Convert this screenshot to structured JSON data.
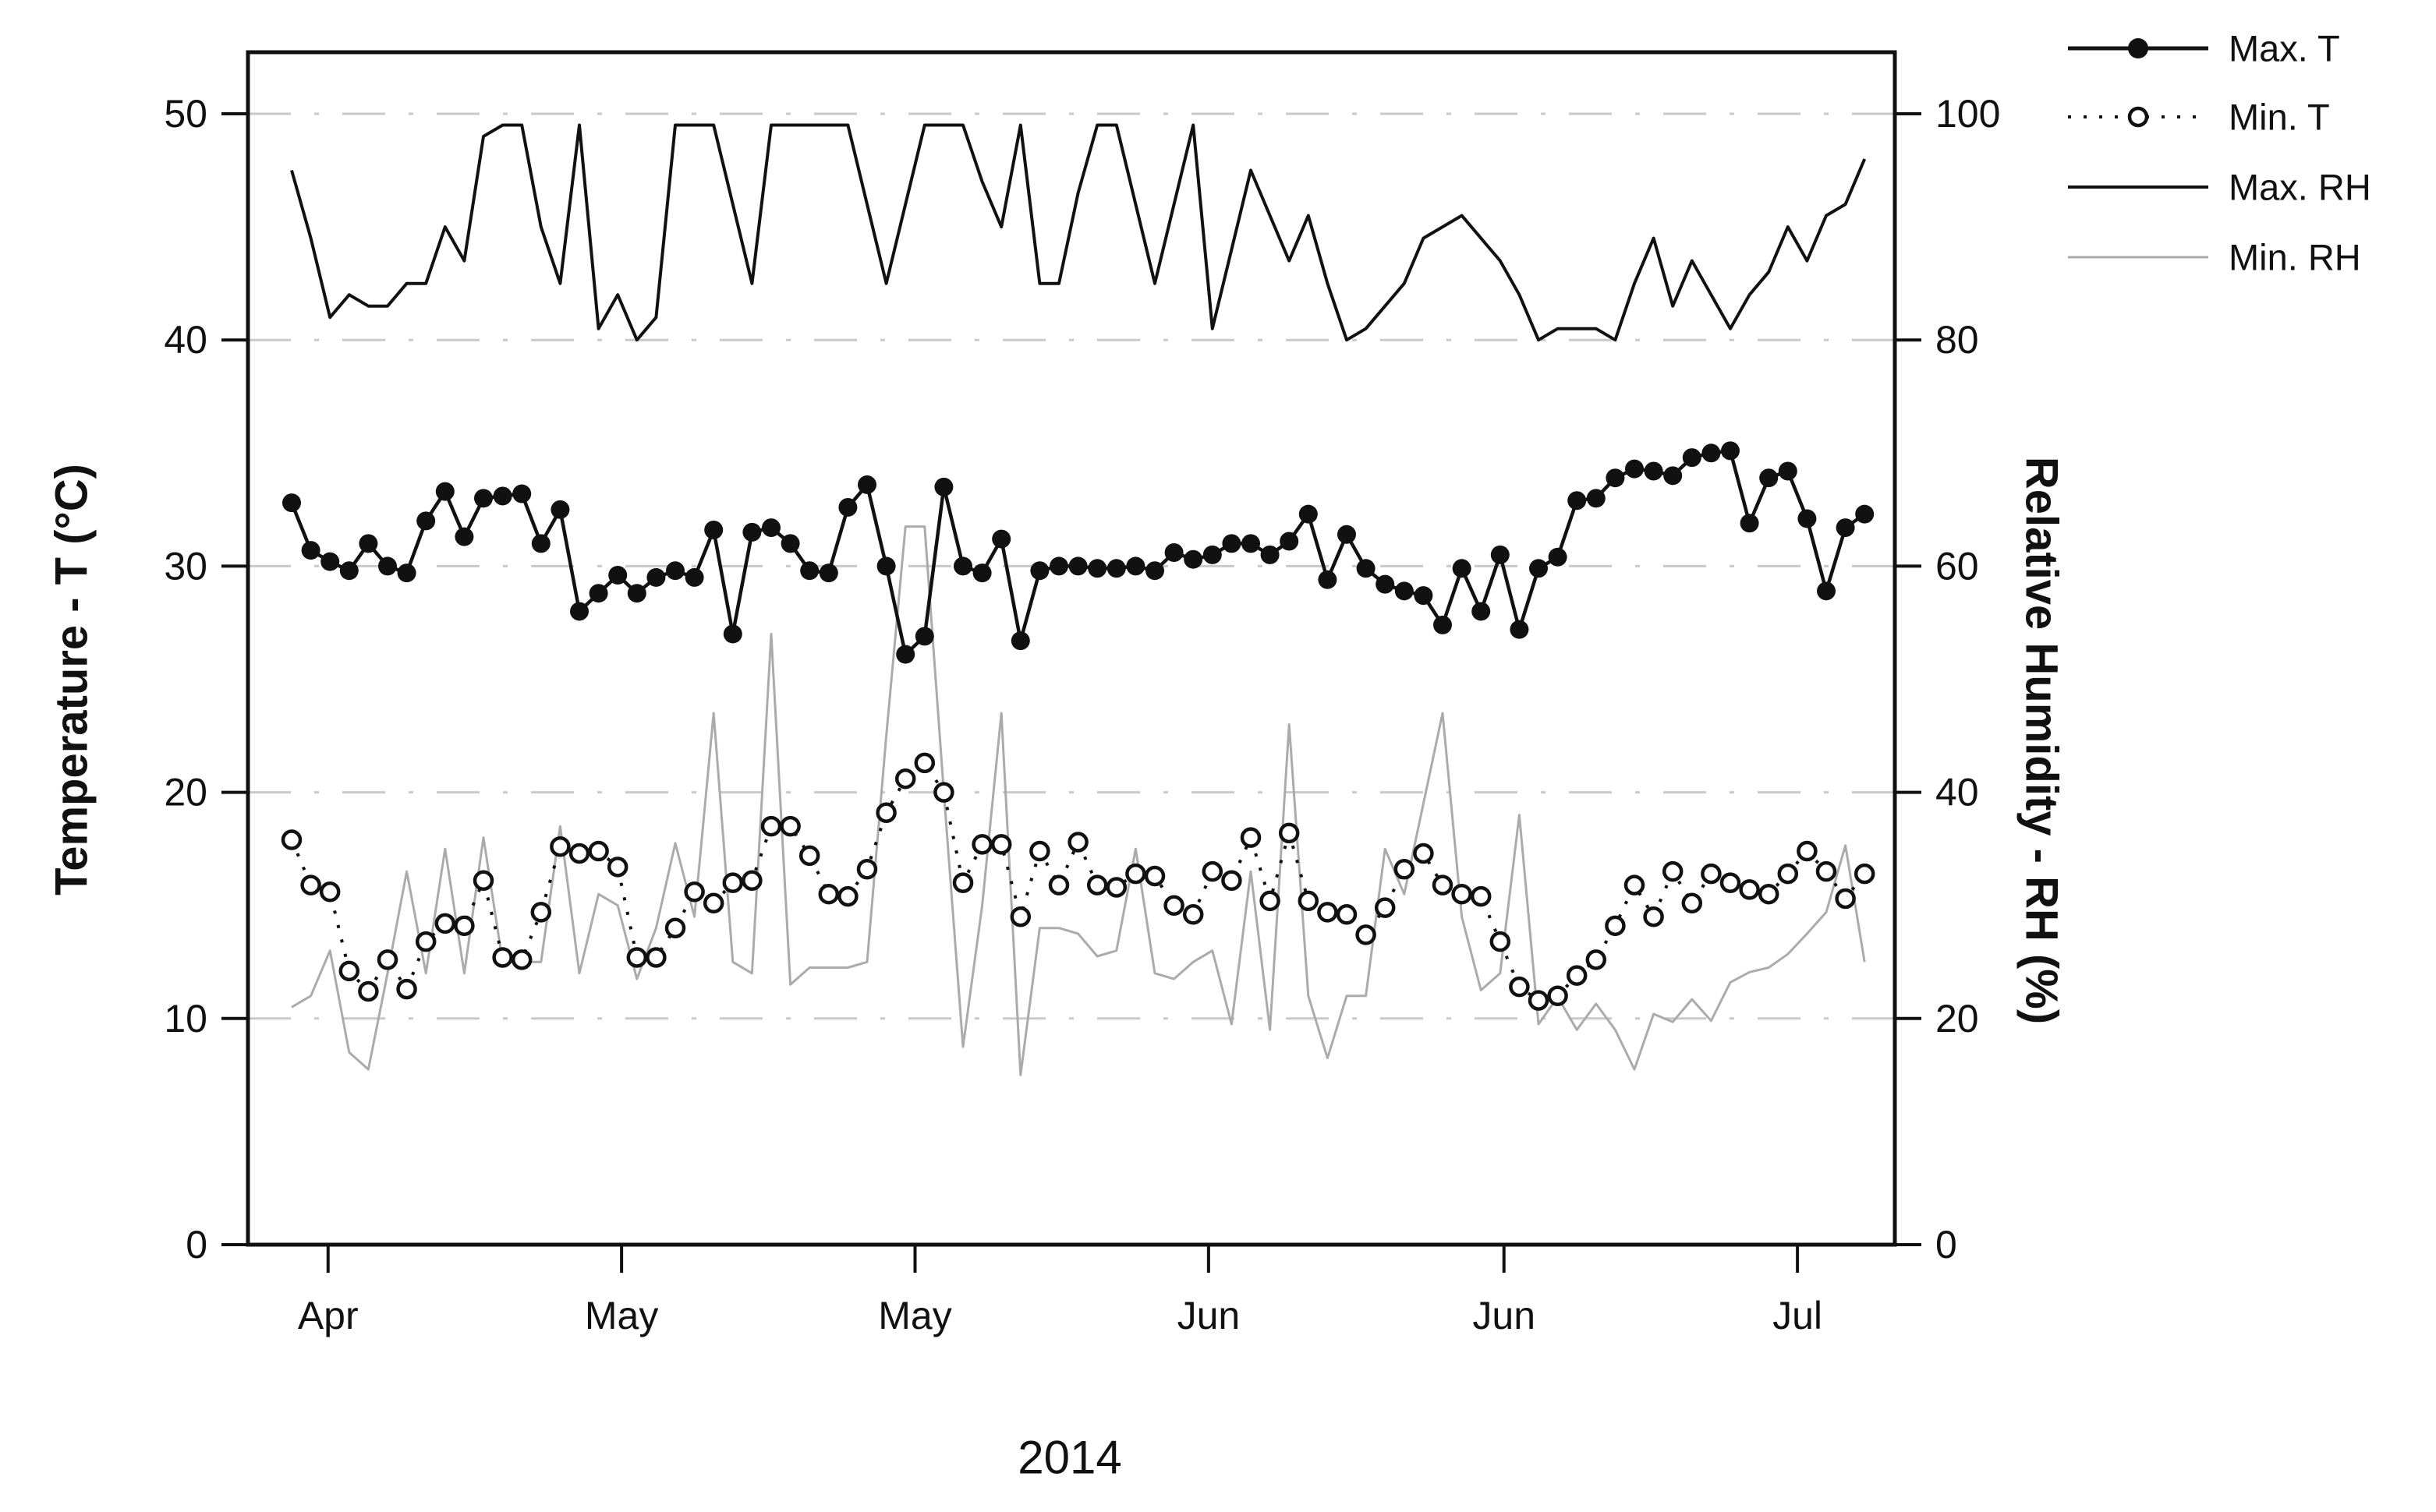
{
  "figure": {
    "x_axis_label": "2014",
    "y_left_title": "Temperature - T (°C)",
    "y_right_title": "Relative Humidity - RH (%)",
    "y_left_ticks": [
      0,
      10,
      20,
      30,
      40,
      50
    ],
    "y_right_ticks": [
      0,
      20,
      40,
      60,
      80,
      100
    ],
    "x_tick_labels": [
      "Apr",
      "May",
      "May",
      "Jun",
      "Jun",
      "Jul"
    ]
  },
  "legend": [
    {
      "label": "Max. T",
      "symbol": "solid-line-filled-dot"
    },
    {
      "label": "Min. T",
      "symbol": "dotted-line-open-dot"
    },
    {
      "label": "Max. RH",
      "symbol": "solid-line"
    },
    {
      "label": "Min. RH",
      "symbol": "thin-gray-line"
    }
  ],
  "colors": {
    "series_black": "#111111",
    "min_rh_gray": "#ababab",
    "grid_gray": "#c9c9c9",
    "frame_black": "#111111"
  },
  "chart_data": {
    "type": "line",
    "title": "",
    "xlabel": "2014",
    "ylabel_left": "Temperature - T (°C)",
    "ylabel_right": "Relative Humidity - RH (%)",
    "x_description": "daily observations, mid-April through early July 2014 (day index 0-82)",
    "x_ticks": [
      {
        "label": "Apr",
        "day": 1.9
      },
      {
        "label": "May",
        "day": 17.2
      },
      {
        "label": "May",
        "day": 32.5
      },
      {
        "label": "Jun",
        "day": 47.8
      },
      {
        "label": "Jun",
        "day": 63.2
      },
      {
        "label": "Jul",
        "day": 78.5
      }
    ],
    "ylim_left": [
      0,
      52.7
    ],
    "ylim_right": [
      0,
      105.4
    ],
    "grid": "horizontal dash-dot gridlines at left-axis 10,20,30,40,50 (right-axis 20,40,60,80,100)",
    "legend_position": "top-right outside plot",
    "series": [
      {
        "name": "Max. T",
        "axis": "left",
        "unit": "°C",
        "line": "solid",
        "marker": "filled-circle",
        "color": "#111111",
        "values": [
          32.8,
          30.7,
          30.2,
          29.8,
          31.0,
          30.0,
          29.7,
          32.0,
          33.3,
          31.3,
          33.0,
          33.1,
          33.2,
          31.0,
          32.5,
          28.0,
          28.8,
          29.6,
          28.8,
          29.5,
          29.8,
          29.5,
          31.6,
          27.0,
          31.5,
          31.7,
          31.0,
          29.8,
          29.7,
          32.6,
          33.6,
          30.0,
          26.1,
          26.9,
          33.5,
          30.0,
          29.7,
          31.2,
          26.7,
          29.8,
          30.0,
          30.0,
          29.9,
          29.9,
          30.0,
          29.8,
          30.6,
          30.3,
          30.5,
          31.0,
          31.0,
          30.5,
          31.1,
          32.3,
          29.4,
          31.4,
          29.9,
          29.2,
          28.9,
          28.7,
          27.4,
          29.9,
          28.0,
          30.5,
          27.2,
          29.9,
          30.4,
          32.9,
          33.0,
          33.9,
          34.3,
          34.2,
          34.0,
          34.8,
          35.0,
          35.1,
          31.9,
          33.9,
          34.2,
          32.1,
          28.9,
          31.7,
          32.3
        ]
      },
      {
        "name": "Min. T",
        "axis": "left",
        "unit": "°C",
        "line": "dotted",
        "marker": "open-circle",
        "color": "#111111",
        "values": [
          17.9,
          15.9,
          15.6,
          12.1,
          11.2,
          12.6,
          11.3,
          13.4,
          14.2,
          14.1,
          16.1,
          12.7,
          12.6,
          14.7,
          17.6,
          17.3,
          17.4,
          16.7,
          12.7,
          12.7,
          14.0,
          15.6,
          15.1,
          16.0,
          16.1,
          18.5,
          18.5,
          17.2,
          15.5,
          15.4,
          16.6,
          19.1,
          20.6,
          21.3,
          20.0,
          16.0,
          17.7,
          17.7,
          14.5,
          17.4,
          15.9,
          17.8,
          15.9,
          15.8,
          16.4,
          16.3,
          15.0,
          14.6,
          16.5,
          16.1,
          18.0,
          15.2,
          18.2,
          15.2,
          14.7,
          14.6,
          13.7,
          14.9,
          16.6,
          17.3,
          15.9,
          15.5,
          15.4,
          13.4,
          11.4,
          10.8,
          11.0,
          11.9,
          12.6,
          14.1,
          15.9,
          14.5,
          16.5,
          15.1,
          16.4,
          16.0,
          15.7,
          15.5,
          16.4,
          17.4,
          16.5,
          15.3,
          16.4
        ]
      },
      {
        "name": "Max. RH",
        "axis": "right",
        "unit": "%",
        "line": "solid",
        "marker": "none",
        "color": "#111111",
        "values": [
          95,
          89,
          82,
          84,
          83,
          83,
          85,
          85,
          90,
          87,
          98,
          99,
          99,
          90,
          85,
          99,
          81,
          84,
          80,
          82,
          99,
          99,
          99,
          92,
          85,
          99,
          99,
          99,
          99,
          99,
          92,
          85,
          92,
          99,
          99,
          99,
          94,
          90,
          99,
          85,
          85,
          93,
          99,
          99,
          92,
          85,
          92,
          99,
          81,
          88,
          95,
          91,
          87,
          91,
          85,
          80,
          81,
          83,
          85,
          89,
          90,
          91,
          89,
          87,
          84,
          80,
          81,
          81,
          81,
          80,
          85,
          89,
          83,
          87,
          84,
          81,
          84,
          86,
          90,
          87,
          91,
          92,
          96
        ]
      },
      {
        "name": "Min. RH",
        "axis": "right",
        "unit": "%",
        "line": "solid-thin",
        "marker": "none",
        "color": "#ababab",
        "values": [
          21,
          22,
          26,
          17,
          15.5,
          24,
          33,
          24,
          35,
          24,
          36,
          25,
          25,
          25,
          37,
          24,
          31,
          30,
          23.5,
          28,
          35.5,
          29,
          47,
          25,
          24,
          54,
          23,
          24.5,
          24.5,
          24.5,
          25,
          45,
          63.5,
          63.5,
          40,
          17.5,
          30,
          47,
          15,
          28,
          28,
          27.5,
          25.5,
          26,
          35,
          24,
          23.5,
          25,
          26,
          19.5,
          33,
          19,
          46,
          22,
          16.5,
          22,
          22,
          35,
          31,
          39,
          47,
          29,
          22.5,
          24,
          38,
          19.5,
          21.9,
          19,
          21.3,
          19,
          15.5,
          20.4,
          19.7,
          21.7,
          19.8,
          23.2,
          24.1,
          24.5,
          25.7,
          27.5,
          29.4,
          35.3,
          25
        ]
      }
    ]
  }
}
